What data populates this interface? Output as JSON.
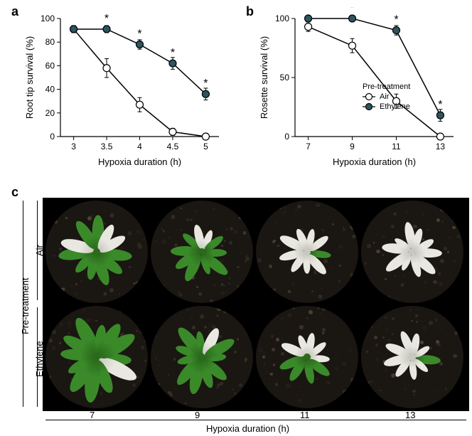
{
  "panels": {
    "a": {
      "label": "a",
      "ylabel": "Root tip survival (%)",
      "xlabel": "Hypoxia duration (h)",
      "xlim": [
        2.8,
        5.2
      ],
      "ylim": [
        0,
        100
      ],
      "xticks": [
        3.0,
        3.5,
        4.0,
        4.5,
        5.0
      ],
      "yticks": [
        0,
        20,
        40,
        60,
        80,
        100
      ],
      "series": [
        {
          "name": "Air",
          "color": "#ffffff",
          "stroke": "#000000",
          "data": [
            {
              "x": 3.0,
              "y": 91,
              "err": 3,
              "sig": false
            },
            {
              "x": 3.5,
              "y": 58,
              "err": 8,
              "sig": false
            },
            {
              "x": 4.0,
              "y": 27,
              "err": 6,
              "sig": false
            },
            {
              "x": 4.5,
              "y": 4,
              "err": 3,
              "sig": false
            },
            {
              "x": 5.0,
              "y": 0,
              "err": 0,
              "sig": false
            }
          ]
        },
        {
          "name": "Ethylene",
          "color": "#2d5560",
          "stroke": "#000000",
          "data": [
            {
              "x": 3.0,
              "y": 91,
              "err": 3,
              "sig": false
            },
            {
              "x": 3.5,
              "y": 91,
              "err": 3,
              "sig": true
            },
            {
              "x": 4.0,
              "y": 78,
              "err": 4,
              "sig": true
            },
            {
              "x": 4.5,
              "y": 62,
              "err": 5,
              "sig": true
            },
            {
              "x": 5.0,
              "y": 36,
              "err": 5,
              "sig": true
            }
          ]
        }
      ],
      "axis_color": "#000000",
      "line_width": 1.5,
      "marker_size": 5,
      "label_fontsize": 13,
      "tick_fontsize": 12
    },
    "b": {
      "label": "b",
      "ylabel": "Rosette survival (%)",
      "xlabel": "Hypoxia duration (h)",
      "xlim": [
        6.4,
        13.6
      ],
      "ylim": [
        0,
        100
      ],
      "xticks": [
        7,
        9,
        11,
        13
      ],
      "yticks": [
        0,
        50,
        100
      ],
      "legend_title": "Pre-treatment",
      "legend_items": [
        {
          "label": "Air",
          "color": "#ffffff",
          "stroke": "#000000"
        },
        {
          "label": "Ethylene",
          "color": "#2d5560",
          "stroke": "#000000"
        }
      ],
      "series": [
        {
          "name": "Air",
          "color": "#ffffff",
          "stroke": "#000000",
          "data": [
            {
              "x": 7,
              "y": 93,
              "err": 4,
              "sig": false
            },
            {
              "x": 9,
              "y": 77,
              "err": 6,
              "sig": false
            },
            {
              "x": 11,
              "y": 30,
              "err": 6,
              "sig": false
            },
            {
              "x": 13,
              "y": 0,
              "err": 0,
              "sig": false
            }
          ]
        },
        {
          "name": "Ethylene",
          "color": "#2d5560",
          "stroke": "#000000",
          "data": [
            {
              "x": 7,
              "y": 100,
              "err": 0,
              "sig": false
            },
            {
              "x": 9,
              "y": 100,
              "err": 0,
              "sig": true
            },
            {
              "x": 11,
              "y": 90,
              "err": 4,
              "sig": true
            },
            {
              "x": 13,
              "y": 18,
              "err": 5,
              "sig": true
            }
          ]
        }
      ],
      "axis_color": "#000000",
      "line_width": 1.5,
      "marker_size": 5,
      "label_fontsize": 13,
      "tick_fontsize": 12
    },
    "c": {
      "label": "c",
      "ylabel": "Pre-treatment",
      "xlabel": "Hypoxia duration (h)",
      "row_labels": [
        "Air",
        "Ethylene"
      ],
      "col_labels": [
        "7",
        "9",
        "11",
        "13"
      ],
      "background_color": "#000000",
      "pot_soil_color": "#1a1612",
      "pot_speckle_colors": [
        "#3a342a",
        "#5a4d3a",
        "#2a2218"
      ],
      "green_leaf_color": "#3a8a2a",
      "green_leaf_dark": "#2a6a1a",
      "white_leaf_color": "#e8e8e0",
      "white_leaf_shadow": "#c8c8c0",
      "plants": [
        [
          {
            "size": 52,
            "green_ratio": 0.75,
            "leaves": 11
          },
          {
            "size": 44,
            "green_ratio": 0.55,
            "leaves": 10
          },
          {
            "size": 40,
            "green_ratio": 0.1,
            "leaves": 9
          },
          {
            "size": 42,
            "green_ratio": 0.0,
            "leaves": 10
          }
        ],
        [
          {
            "size": 62,
            "green_ratio": 0.95,
            "leaves": 12
          },
          {
            "size": 50,
            "green_ratio": 0.8,
            "leaves": 11
          },
          {
            "size": 42,
            "green_ratio": 0.35,
            "leaves": 9
          },
          {
            "size": 40,
            "green_ratio": 0.05,
            "leaves": 9
          }
        ]
      ]
    }
  }
}
